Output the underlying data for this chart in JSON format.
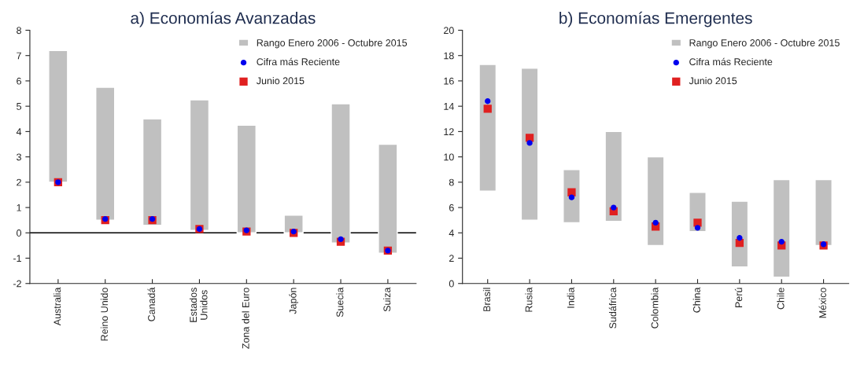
{
  "chart_data": [
    {
      "type": "bar",
      "title": "a) Economías Avanzadas",
      "categories": [
        "Australia",
        "Reino Unido",
        "Canadá",
        "Estados\nUnidos",
        "Zona del Euro",
        "Japón",
        "Suecia",
        "Suiza"
      ],
      "series": [
        {
          "name": "Rango Enero 2006 - Octubre 2015",
          "color": "#c0c0c0",
          "base": [
            2.0,
            0.5,
            0.3,
            0.1,
            0.0,
            0.0,
            -0.4,
            -0.8
          ],
          "values": [
            5.2,
            5.25,
            4.2,
            5.15,
            4.25,
            0.7,
            5.5,
            4.3
          ]
        },
        {
          "type": "scatter",
          "name": "Cifra más Reciente",
          "color": "#0000ee",
          "marker": "circle",
          "values": [
            2.0,
            0.55,
            0.55,
            0.15,
            0.1,
            0.05,
            -0.25,
            -0.7
          ]
        },
        {
          "type": "scatter",
          "name": "Junio 2015",
          "color": "#e02020",
          "marker": "square",
          "values": [
            2.0,
            0.5,
            0.5,
            0.15,
            0.05,
            0.0,
            -0.35,
            -0.7
          ]
        }
      ],
      "ylim": [
        -2,
        8
      ],
      "yticks": [
        -2,
        -1,
        0,
        1,
        2,
        3,
        4,
        5,
        6,
        7,
        8
      ],
      "ref_lines": [
        {
          "axis": "y",
          "value": 0,
          "color": "#000000"
        }
      ],
      "legend": "top right"
    },
    {
      "type": "bar",
      "title": "b) Economías Emergentes",
      "categories": [
        "Brasil",
        "Rusia",
        "India",
        "Sudáfrica",
        "Colombia",
        "China",
        "Perú",
        "Chile",
        "México"
      ],
      "series": [
        {
          "name": "Rango Enero 2006 - Octubre 2015",
          "color": "#c0c0c0",
          "base": [
            7.3,
            5.0,
            4.8,
            4.9,
            3.0,
            4.1,
            1.3,
            0.5,
            3.0
          ],
          "values": [
            10.0,
            12.0,
            4.2,
            7.1,
            7.0,
            3.1,
            5.2,
            7.7,
            5.2
          ]
        },
        {
          "type": "scatter",
          "name": "Cifra más Reciente",
          "color": "#0000ee",
          "marker": "circle",
          "values": [
            14.4,
            11.1,
            6.8,
            6.0,
            4.8,
            4.4,
            3.6,
            3.3,
            3.1
          ]
        },
        {
          "type": "scatter",
          "name": "Junio 2015",
          "color": "#e02020",
          "marker": "square",
          "values": [
            13.8,
            11.5,
            7.2,
            5.7,
            4.5,
            4.8,
            3.2,
            3.0,
            3.0
          ]
        }
      ],
      "ylim": [
        0,
        20
      ],
      "yticks": [
        0,
        2,
        4,
        6,
        8,
        10,
        12,
        14,
        16,
        18,
        20
      ],
      "legend": "top right"
    }
  ]
}
